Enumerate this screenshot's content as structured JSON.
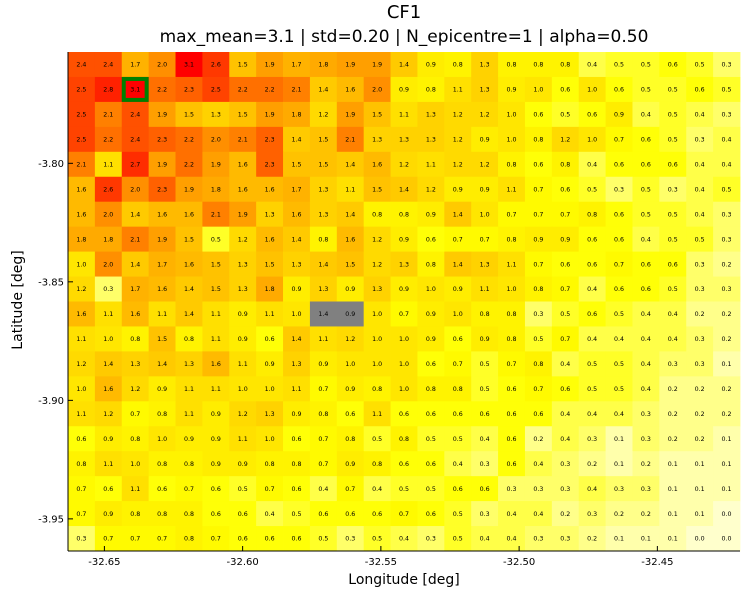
{
  "chart_data": {
    "type": "heatmap",
    "title": "CF1",
    "subtitle": "max_mean=3.1 | std=0.20 | N_epicentre=1 | alpha=0.50",
    "xlabel": "Longitude [deg]",
    "ylabel": "Latitude [deg]",
    "x_ticks": [
      {
        "value": -32.65,
        "label": "-32.65"
      },
      {
        "value": -32.6,
        "label": "-32.60"
      },
      {
        "value": -32.55,
        "label": "-32.55"
      },
      {
        "value": -32.5,
        "label": "-32.50"
      },
      {
        "value": -32.45,
        "label": "-32.45"
      }
    ],
    "y_ticks": [
      {
        "value": -3.8,
        "label": "-3.80"
      },
      {
        "value": -3.85,
        "label": "-3.85"
      },
      {
        "value": -3.9,
        "label": "-3.90"
      },
      {
        "value": -3.95,
        "label": "-3.95"
      }
    ],
    "lon_start": -32.6583,
    "lon_step": 0.009722,
    "lat_start": -3.7583,
    "lat_step": -0.010526,
    "rows": [
      [
        "2.4",
        "2.4",
        "1.7",
        "2.0",
        "3.1",
        "2.6",
        "1.5",
        "1.9",
        "1.7",
        "1.8",
        "1.9",
        "1.9",
        "1.4",
        "0.9",
        "0.8",
        "1.3",
        "0.8",
        "0.8",
        "0.8",
        "0.4",
        "0.5",
        "0.5",
        "0.6",
        "0.5",
        "0.3"
      ],
      [
        "2.5",
        "2.8",
        "3.1",
        "2.2",
        "2.3",
        "2.5",
        "2.2",
        "2.2",
        "2.1",
        "1.4",
        "1.6",
        "2.0",
        "0.9",
        "0.8",
        "1.1",
        "1.3",
        "0.9",
        "1.0",
        "0.6",
        "1.0",
        "0.6",
        "0.5",
        "0.5",
        "0.6",
        "0.5"
      ],
      [
        "2.5",
        "2.1",
        "2.4",
        "1.9",
        "1.5",
        "1.3",
        "1.5",
        "1.9",
        "1.8",
        "1.2",
        "1.9",
        "1.5",
        "1.1",
        "1.3",
        "1.2",
        "1.2",
        "1.0",
        "0.6",
        "0.5",
        "0.6",
        "0.9",
        "0.4",
        "0.5",
        "0.4",
        "0.3"
      ],
      [
        "2.5",
        "2.2",
        "2.4",
        "2.3",
        "2.2",
        "2.0",
        "2.1",
        "2.3",
        "1.4",
        "1.5",
        "2.1",
        "1.3",
        "1.3",
        "1.3",
        "1.2",
        "0.9",
        "1.0",
        "0.8",
        "1.2",
        "1.0",
        "0.7",
        "0.6",
        "0.5",
        "0.3",
        "0.4"
      ],
      [
        "2.1",
        "1.1",
        "2.7",
        "1.9",
        "2.2",
        "1.9",
        "1.6",
        "2.3",
        "1.5",
        "1.5",
        "1.4",
        "1.6",
        "1.2",
        "1.1",
        "1.2",
        "1.2",
        "0.8",
        "0.6",
        "0.8",
        "0.4",
        "0.6",
        "0.6",
        "0.6",
        "0.4",
        "0.4"
      ],
      [
        "1.6",
        "2.6",
        "2.0",
        "2.3",
        "1.9",
        "1.8",
        "1.6",
        "1.6",
        "1.7",
        "1.3",
        "1.1",
        "1.5",
        "1.4",
        "1.2",
        "0.9",
        "0.9",
        "1.1",
        "0.7",
        "0.6",
        "0.5",
        "0.3",
        "0.5",
        "0.3",
        "0.4",
        "0.5"
      ],
      [
        "1.6",
        "2.0",
        "1.4",
        "1.6",
        "1.6",
        "2.1",
        "1.9",
        "1.3",
        "1.6",
        "1.3",
        "1.4",
        "0.8",
        "0.8",
        "0.9",
        "1.4",
        "1.0",
        "0.7",
        "0.7",
        "0.7",
        "0.8",
        "0.6",
        "0.5",
        "0.5",
        "0.4",
        "0.3"
      ],
      [
        "1.8",
        "1.8",
        "2.1",
        "1.9",
        "1.5",
        "0.5",
        "1.2",
        "1.6",
        "1.4",
        "0.8",
        "1.6",
        "1.2",
        "0.9",
        "0.6",
        "0.7",
        "0.7",
        "0.8",
        "0.9",
        "0.9",
        "0.6",
        "0.6",
        "0.4",
        "0.5",
        "0.5",
        "0.3"
      ],
      [
        "1.0",
        "2.0",
        "1.4",
        "1.7",
        "1.6",
        "1.5",
        "1.3",
        "1.5",
        "1.3",
        "1.4",
        "1.5",
        "1.2",
        "1.3",
        "0.8",
        "1.4",
        "1.3",
        "1.1",
        "0.7",
        "0.6",
        "0.6",
        "0.7",
        "0.6",
        "0.6",
        "0.3",
        "0.2"
      ],
      [
        "1.2",
        "0.3",
        "1.7",
        "1.6",
        "1.4",
        "1.5",
        "1.3",
        "1.8",
        "0.9",
        "1.3",
        "0.9",
        "1.3",
        "0.9",
        "1.0",
        "0.9",
        "1.1",
        "1.0",
        "0.8",
        "0.7",
        "0.4",
        "0.6",
        "0.6",
        "0.5",
        "0.3",
        "0.3"
      ],
      [
        "1.6",
        "1.1",
        "1.6",
        "1.1",
        "1.4",
        "1.1",
        "0.9",
        "1.1",
        "1.0",
        "1.4",
        "0.9",
        "1.0",
        "0.7",
        "0.9",
        "1.0",
        "0.8",
        "0.8",
        "0.3",
        "0.5",
        "0.6",
        "0.5",
        "0.4",
        "0.4",
        "0.2",
        "0.2"
      ],
      [
        "1.1",
        "1.0",
        "0.8",
        "1.5",
        "0.8",
        "1.1",
        "0.9",
        "0.6",
        "1.4",
        "1.1",
        "1.2",
        "1.0",
        "1.0",
        "0.9",
        "0.6",
        "0.9",
        "0.8",
        "0.5",
        "0.7",
        "0.4",
        "0.4",
        "0.4",
        "0.4",
        "0.3",
        "0.2"
      ],
      [
        "1.2",
        "1.4",
        "1.3",
        "1.4",
        "1.3",
        "1.6",
        "1.1",
        "0.9",
        "1.3",
        "0.9",
        "1.0",
        "1.0",
        "1.0",
        "0.6",
        "0.7",
        "0.5",
        "0.7",
        "0.8",
        "0.4",
        "0.5",
        "0.5",
        "0.4",
        "0.3",
        "0.3",
        "0.1"
      ],
      [
        "1.0",
        "1.6",
        "1.2",
        "0.9",
        "1.1",
        "1.1",
        "1.0",
        "1.0",
        "1.1",
        "0.7",
        "0.9",
        "0.8",
        "1.0",
        "0.8",
        "0.8",
        "0.5",
        "0.6",
        "0.7",
        "0.6",
        "0.5",
        "0.5",
        "0.4",
        "0.2",
        "0.2",
        "0.2"
      ],
      [
        "1.1",
        "1.2",
        "0.7",
        "0.8",
        "1.1",
        "0.9",
        "1.2",
        "1.3",
        "0.9",
        "0.8",
        "0.6",
        "1.1",
        "0.6",
        "0.6",
        "0.6",
        "0.6",
        "0.6",
        "0.6",
        "0.4",
        "0.4",
        "0.4",
        "0.3",
        "0.2",
        "0.2",
        "0.2"
      ],
      [
        "0.6",
        "0.9",
        "0.8",
        "1.0",
        "0.9",
        "0.9",
        "1.1",
        "1.0",
        "0.6",
        "0.7",
        "0.8",
        "0.5",
        "0.8",
        "0.5",
        "0.5",
        "0.4",
        "0.6",
        "0.2",
        "0.4",
        "0.3",
        "0.1",
        "0.3",
        "0.2",
        "0.2",
        "0.1"
      ],
      [
        "0.8",
        "1.1",
        "1.0",
        "0.8",
        "0.8",
        "0.9",
        "0.9",
        "0.8",
        "0.8",
        "0.7",
        "0.9",
        "0.8",
        "0.6",
        "0.6",
        "0.4",
        "0.3",
        "0.6",
        "0.4",
        "0.3",
        "0.2",
        "0.1",
        "0.2",
        "0.1",
        "0.1",
        "0.1"
      ],
      [
        "0.7",
        "0.6",
        "1.1",
        "0.6",
        "0.7",
        "0.6",
        "0.5",
        "0.7",
        "0.6",
        "0.4",
        "0.7",
        "0.4",
        "0.5",
        "0.5",
        "0.6",
        "0.6",
        "0.3",
        "0.3",
        "0.3",
        "0.4",
        "0.3",
        "0.3",
        "0.1",
        "0.1",
        "0.1"
      ],
      [
        "0.7",
        "0.9",
        "0.8",
        "0.8",
        "0.8",
        "0.6",
        "0.6",
        "0.4",
        "0.5",
        "0.6",
        "0.6",
        "0.6",
        "0.7",
        "0.6",
        "0.5",
        "0.3",
        "0.4",
        "0.4",
        "0.2",
        "0.3",
        "0.2",
        "0.2",
        "0.1",
        "0.1",
        "0.0"
      ],
      [
        "0.3",
        "0.7",
        "0.7",
        "0.7",
        "0.8",
        "0.7",
        "0.6",
        "0.6",
        "0.6",
        "0.5",
        "0.3",
        "0.5",
        "0.4",
        "0.3",
        "0.5",
        "0.4",
        "0.4",
        "0.3",
        "0.3",
        "0.2",
        "0.1",
        "0.1",
        "0.1",
        "0.0",
        "0.0"
      ]
    ],
    "vmin": 0.0,
    "vmax": 3.1,
    "colormap": [
      "#ffffcc",
      "#ffff00",
      "#ffd700",
      "#ffa500",
      "#ff4500",
      "#ff0000"
    ],
    "masked_cells": [
      [
        10,
        9
      ],
      [
        10,
        10
      ]
    ],
    "masked_color": "#808080",
    "highlight_cell": [
      1,
      2
    ],
    "highlight_color": "#008000",
    "grid": false,
    "legend": "none"
  }
}
